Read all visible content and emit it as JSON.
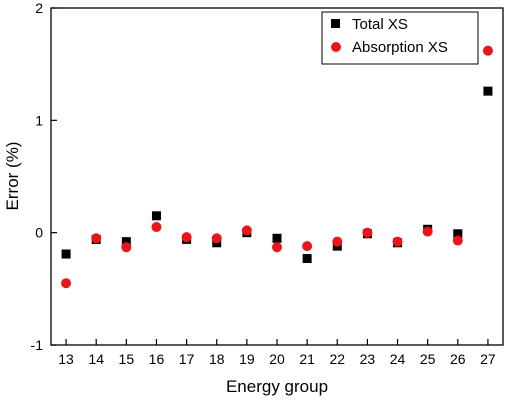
{
  "chart_data": {
    "type": "scatter",
    "title": "",
    "xlabel": "Energy group",
    "ylabel": "Error (%)",
    "xlim": [
      12.5,
      27.5
    ],
    "ylim": [
      -1,
      2
    ],
    "x_ticks": [
      "13",
      "14",
      "15",
      "16",
      "17",
      "18",
      "19",
      "20",
      "21",
      "22",
      "23",
      "24",
      "25",
      "26",
      "27"
    ],
    "y_ticks": [
      "-1",
      "0",
      "1",
      "2"
    ],
    "legend_position": "top-right",
    "series": [
      {
        "name": "Total XS",
        "marker": "square",
        "color": "#000000",
        "x": [
          13,
          14,
          15,
          16,
          17,
          18,
          19,
          20,
          21,
          22,
          23,
          24,
          25,
          26,
          27
        ],
        "y": [
          -0.19,
          -0.06,
          -0.08,
          0.15,
          -0.06,
          -0.09,
          0.0,
          -0.05,
          -0.23,
          -0.12,
          -0.01,
          -0.09,
          0.03,
          -0.01,
          1.26
        ]
      },
      {
        "name": "Absorption XS",
        "marker": "circle",
        "color": "#e8161b",
        "x": [
          13,
          14,
          15,
          16,
          17,
          18,
          19,
          20,
          21,
          22,
          23,
          24,
          25,
          26,
          27
        ],
        "y": [
          -0.45,
          -0.05,
          -0.13,
          0.05,
          -0.04,
          -0.05,
          0.02,
          -0.13,
          -0.12,
          -0.08,
          0.0,
          -0.08,
          0.01,
          -0.07,
          1.62
        ]
      }
    ]
  }
}
